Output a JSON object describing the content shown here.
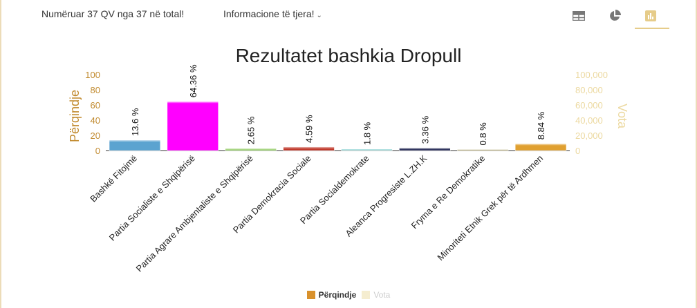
{
  "toolbar": {
    "count_text": "Numëruar 37 QV nga 37 në total!",
    "info_label": "Informacione të tjera!",
    "view_icons": [
      "table-icon",
      "pie-chart-icon",
      "bar-chart-icon"
    ],
    "active_view": "bar-chart-icon"
  },
  "colors": {
    "accent": "#c9a227",
    "axis_left": "#c18a2e",
    "axis_right": "#ecd9a0",
    "percent_legend": "#d9912c",
    "votes_legend": "#f5edd0"
  },
  "chart_data": {
    "type": "bar",
    "title": "Rezultatet bashkia Dropull",
    "ylabel": "Përqindje",
    "y2label": "Vota",
    "ylim": [
      0,
      100
    ],
    "y2lim": [
      0,
      100000
    ],
    "yticks": [
      "0",
      "20",
      "40",
      "60",
      "80",
      "100"
    ],
    "y2ticks": [
      "0",
      "20,000",
      "40,000",
      "60,000",
      "80,000",
      "100,000"
    ],
    "categories": [
      "Bashkë Fitojmë",
      "Partia Socialiste e Shqipërisë",
      "Partia Agrare Ambjentaliste e Shqipërisë",
      "Partia Demokracia Sociale",
      "Partia Socialdemokrate",
      "Aleanca Progresiste L.ZH.K",
      "Fryma e Re Demokratike",
      "Minoriteti Etnik Grek për të Ardhmen"
    ],
    "values": [
      13.6,
      64.36,
      2.65,
      4.59,
      1.8,
      3.36,
      0.8,
      8.84
    ],
    "data_labels": [
      "13.6 %",
      "64.36 %",
      "2.65 %",
      "4.59 %",
      "1.8 %",
      "3.36 %",
      "0.8 %",
      "8.84 %"
    ],
    "bar_colors": [
      "#5ba3d0",
      "#ff00ff",
      "#7bc043",
      "#c0392b",
      "#5bc0be",
      "#1a1f4e",
      "#8a7b2a",
      "#e0a030"
    ],
    "grid": false,
    "legend_position": "bottom",
    "legend": [
      {
        "name": "Përqindje",
        "color": "#d9912c",
        "active": true
      },
      {
        "name": "Vota",
        "color": "#f5edd0",
        "active": false
      }
    ]
  }
}
